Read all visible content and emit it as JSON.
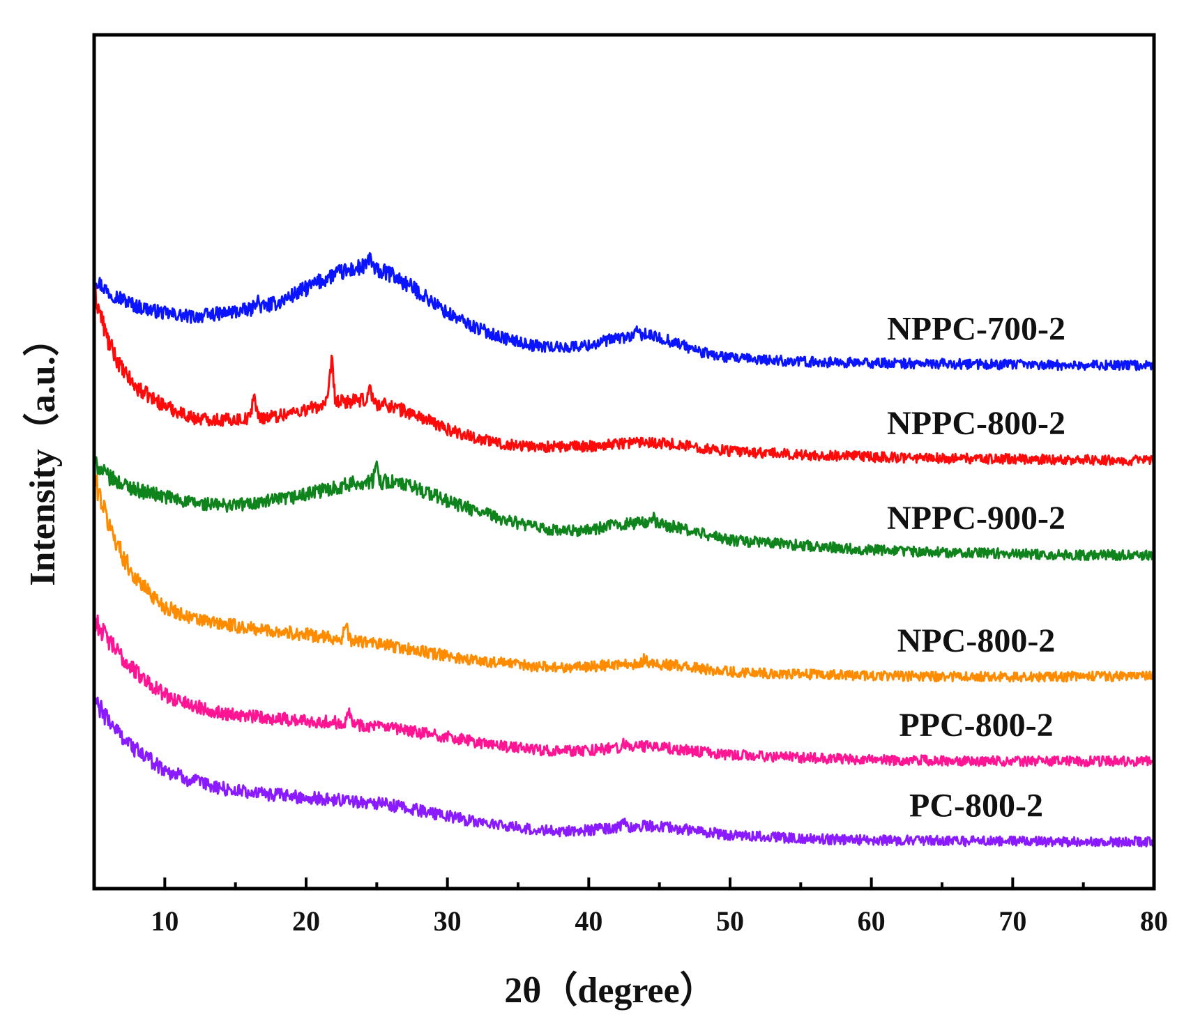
{
  "chart_data": {
    "type": "line",
    "xlabel": "2θ（degree）",
    "ylabel": "Intensity（a.u.）",
    "xlim": [
      5,
      80
    ],
    "ylim": [
      0,
      100
    ],
    "xticks": [
      10,
      20,
      30,
      40,
      50,
      60,
      70,
      80
    ],
    "yticks_shown": false,
    "grid": false,
    "legend": "none",
    "x": [
      5,
      6,
      7,
      8,
      10,
      12,
      14,
      16,
      18,
      20,
      22,
      24,
      26,
      28,
      30,
      32,
      34,
      36,
      38,
      40,
      42,
      44,
      46,
      48,
      50,
      55,
      60,
      65,
      70,
      75,
      80
    ],
    "series": [
      {
        "name": "NPPC-700-2",
        "color": "#0a14ff",
        "values": [
          82,
          80,
          79,
          78,
          77,
          76.5,
          77,
          77.5,
          78.5,
          80.5,
          82.5,
          83.5,
          82.5,
          80,
          77,
          75,
          73.5,
          72.5,
          72.2,
          72.5,
          73.5,
          74,
          73,
          71.5,
          70.7,
          70.2,
          70,
          69.9,
          69.8,
          69.7,
          69.7
        ],
        "peaks": [
          {
            "x": 16.5,
            "y": 79
          },
          {
            "x": 24.5,
            "y": 85
          },
          {
            "x": 43.5,
            "y": 74.5
          }
        ]
      },
      {
        "name": "NPPC-800-2",
        "color": "#ff0a0a",
        "values": [
          80,
          73,
          69,
          66.5,
          64,
          62.3,
          62,
          62.2,
          62.6,
          63.5,
          64.5,
          64.7,
          64,
          62.5,
          60.7,
          59.5,
          58.6,
          58.3,
          58.2,
          58.3,
          58.7,
          59,
          58.6,
          58.1,
          57.6,
          57.1,
          56.8,
          56.6,
          56.5,
          56.4,
          56.3
        ],
        "peaks": [
          {
            "x": 16.3,
            "y": 65.5
          },
          {
            "x": 21.8,
            "y": 70
          },
          {
            "x": 24.5,
            "y": 66.5
          }
        ]
      },
      {
        "name": "NPPC-900-2",
        "color": "#10841c",
        "values": [
          56,
          54,
          53,
          52.2,
          51.2,
          50.3,
          50,
          50.2,
          50.7,
          51.5,
          52.5,
          53.3,
          53.3,
          52.3,
          50.6,
          49.2,
          48,
          47,
          46.3,
          46.5,
          47.3,
          47.6,
          47,
          46,
          45.1,
          44.4,
          43.7,
          43.4,
          43.2,
          43,
          43
        ],
        "peaks": [
          {
            "x": 25,
            "y": 55.5
          },
          {
            "x": 44.5,
            "y": 48.5
          }
        ]
      },
      {
        "name": "NPC-800-2",
        "color": "#ff8c00",
        "values": [
          54,
          47.5,
          43,
          39.5,
          35.7,
          34,
          33.3,
          32.7,
          32.3,
          31.8,
          31.3,
          30.8,
          30.2,
          29.5,
          28.8,
          28.2,
          27.8,
          27.4,
          27.2,
          27.3,
          27.6,
          27.8,
          27.5,
          27,
          26.6,
          26.2,
          26,
          25.9,
          25.9,
          25.9,
          25.9
        ],
        "peaks": [
          {
            "x": 22.8,
            "y": 33
          },
          {
            "x": 44,
            "y": 28.5
          }
        ]
      },
      {
        "name": "PPC-800-2",
        "color": "#ff1493",
        "values": [
          34,
          31,
          28.5,
          26.5,
          23.3,
          21.8,
          20.8,
          20.3,
          20,
          19.7,
          19.5,
          19.1,
          18.6,
          18,
          17.4,
          16.7,
          16.1,
          15.7,
          15.4,
          15.5,
          15.9,
          16.1,
          15.8,
          15.3,
          14.9,
          14.5,
          14.2,
          14.1,
          14,
          14,
          14
        ],
        "peaks": [
          {
            "x": 23,
            "y": 21.5
          },
          {
            "x": 42.5,
            "y": 16.5
          }
        ]
      },
      {
        "name": "PC-800-2",
        "color": "#8a1aff",
        "values": [
          22.5,
          19.8,
          17.5,
          15.5,
          12.8,
          11.2,
          10.2,
          9.6,
          9.2,
          8.9,
          8.6,
          8.3,
          7.8,
          7.1,
          6.3,
          5.5,
          4.9,
          4.4,
          4.1,
          4.3,
          4.7,
          4.9,
          4.6,
          4.1,
          3.6,
          3.1,
          2.9,
          2.8,
          2.7,
          2.7,
          2.7
        ],
        "peaks": [
          {
            "x": 42.5,
            "y": 5.6
          }
        ]
      }
    ]
  }
}
